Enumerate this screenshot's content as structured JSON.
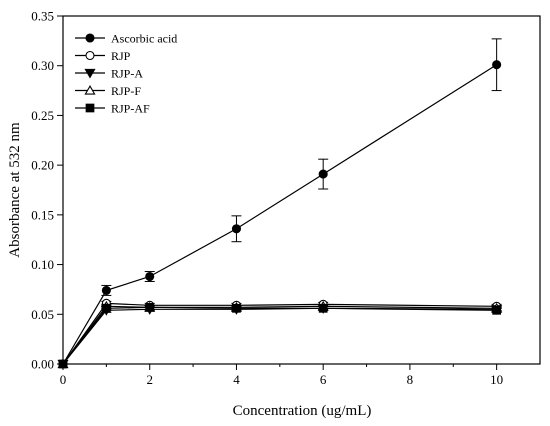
{
  "chart_data": {
    "type": "line",
    "title": "",
    "xlabel": "Concentration (ug/mL)",
    "ylabel": "Absorbance at 532 nm",
    "xlim": [
      0,
      11
    ],
    "ylim": [
      0.0,
      0.35
    ],
    "xticks": [
      "0",
      "2",
      "4",
      "6",
      "8",
      "10"
    ],
    "yticks": [
      "0.00",
      "0.05",
      "0.10",
      "0.15",
      "0.20",
      "0.25",
      "0.30",
      "0.35"
    ],
    "grid": false,
    "legend_position": "top-left",
    "series": [
      {
        "name": "Ascorbic acid",
        "marker": "filled-circle",
        "color": "#000000",
        "x": [
          0,
          1,
          2,
          4,
          6,
          10
        ],
        "y": [
          0.0,
          0.074,
          0.088,
          0.136,
          0.191,
          0.301
        ],
        "err": [
          0,
          0.005,
          0.005,
          0.013,
          0.015,
          0.026
        ]
      },
      {
        "name": "RJP",
        "marker": "open-circle",
        "color": "#000000",
        "x": [
          0,
          1,
          2,
          4,
          6,
          10
        ],
        "y": [
          0.0,
          0.061,
          0.059,
          0.059,
          0.06,
          0.058
        ],
        "err": [
          0,
          0.002,
          0.002,
          0.002,
          0.002,
          0.002
        ]
      },
      {
        "name": "RJP-A",
        "marker": "filled-triangle-down",
        "color": "#000000",
        "x": [
          0,
          1,
          2,
          4,
          6,
          10
        ],
        "y": [
          0.0,
          0.054,
          0.055,
          0.055,
          0.056,
          0.055
        ],
        "err": [
          0,
          0.002,
          0.002,
          0.002,
          0.002,
          0.002
        ]
      },
      {
        "name": "RJP-F",
        "marker": "open-triangle-up",
        "color": "#000000",
        "x": [
          0,
          1,
          2,
          4,
          6,
          10
        ],
        "y": [
          0.0,
          0.058,
          0.057,
          0.057,
          0.058,
          0.056
        ],
        "err": [
          0,
          0.002,
          0.002,
          0.002,
          0.002,
          0.002
        ]
      },
      {
        "name": "RJP-AF",
        "marker": "filled-square",
        "color": "#000000",
        "x": [
          0,
          1,
          2,
          4,
          6,
          10
        ],
        "y": [
          0.0,
          0.056,
          0.057,
          0.056,
          0.056,
          0.054
        ],
        "err": [
          0,
          0.002,
          0.002,
          0.002,
          0.002,
          0.002
        ]
      }
    ]
  }
}
